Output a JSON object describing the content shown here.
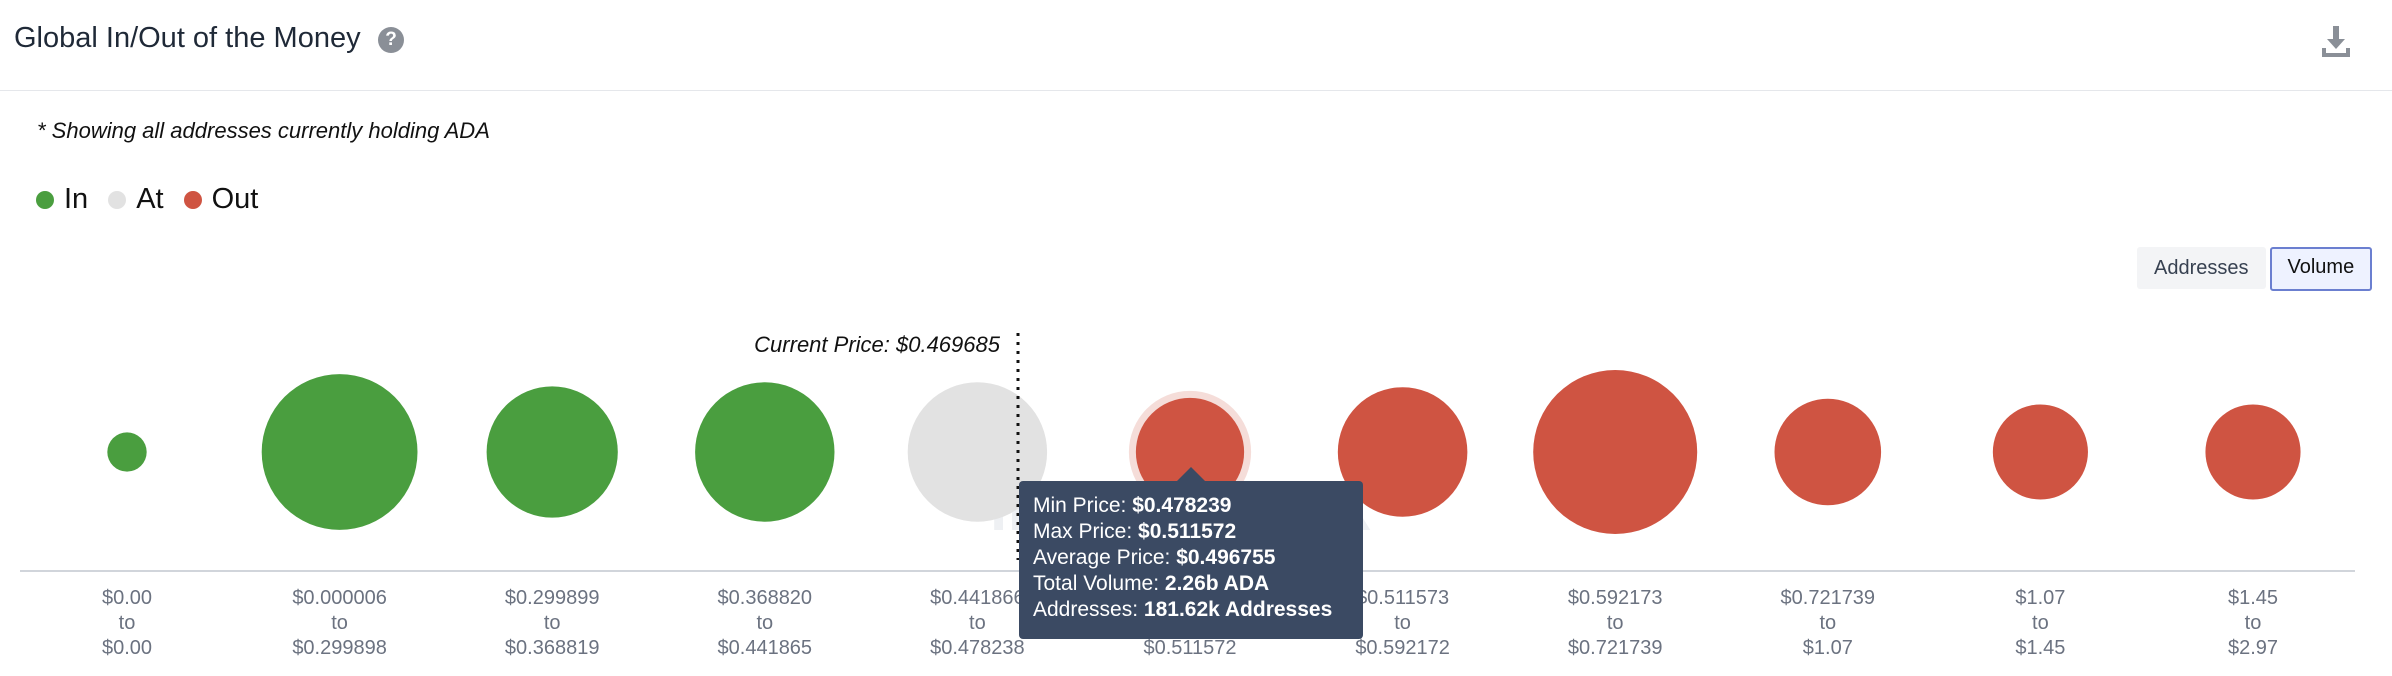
{
  "header": {
    "title": "Global In/Out of the Money",
    "help_icon": "question-circle-icon",
    "download_icon": "download-icon"
  },
  "note": "* Showing all addresses currently holding ADA",
  "legend": [
    {
      "label": "In",
      "color": "#4a9e3f"
    },
    {
      "label": "At",
      "color": "#e2e2e2"
    },
    {
      "label": "Out",
      "color": "#cf5442"
    }
  ],
  "toggle": {
    "addresses_label": "Addresses",
    "volume_label": "Volume",
    "selected": "Volume"
  },
  "tooltip": {
    "min_price_label": "Min Price:",
    "min_price": "$0.478239",
    "max_price_label": "Max Price:",
    "max_price": "$0.511572",
    "avg_price_label": "Average Price:",
    "avg_price": "$0.496755",
    "volume_label": "Total Volume:",
    "volume": "2.26b ADA",
    "addresses_label": "Addresses:",
    "addresses": "181.62k Addresses"
  },
  "chart_data": {
    "type": "scatter",
    "measure": "Total Volume",
    "current_price_label": "Current Price: $0.469685",
    "current_price": 0.469685,
    "categories": [
      {
        "from": "$0.00",
        "to": "$0.00",
        "status": "In",
        "relative_size": 0.24
      },
      {
        "from": "$0.000006",
        "to": "$0.299898",
        "status": "In",
        "relative_size": 0.95
      },
      {
        "from": "$0.299899",
        "to": "$0.368819",
        "status": "In",
        "relative_size": 0.8
      },
      {
        "from": "$0.368820",
        "to": "$0.441865",
        "status": "In",
        "relative_size": 0.85
      },
      {
        "from": "$0.441866",
        "to": "$0.478238",
        "status": "At",
        "relative_size": 0.85
      },
      {
        "from": "$0.478239",
        "to": "$0.511572",
        "status": "Out",
        "relative_size": 0.66,
        "volume": "2.26b ADA",
        "addresses": "181.62k Addresses"
      },
      {
        "from": "$0.511573",
        "to": "$0.592172",
        "status": "Out",
        "relative_size": 0.79
      },
      {
        "from": "$0.592173",
        "to": "$0.721739",
        "status": "Out",
        "relative_size": 1.0
      },
      {
        "from": "$0.721739",
        "to": "$1.07",
        "status": "Out",
        "relative_size": 0.65
      },
      {
        "from": "$1.07",
        "to": "$1.45",
        "status": "Out",
        "relative_size": 0.58
      },
      {
        "from": "$1.45",
        "to": "$2.97",
        "status": "Out",
        "relative_size": 0.58
      }
    ],
    "hovered_index": 5
  }
}
